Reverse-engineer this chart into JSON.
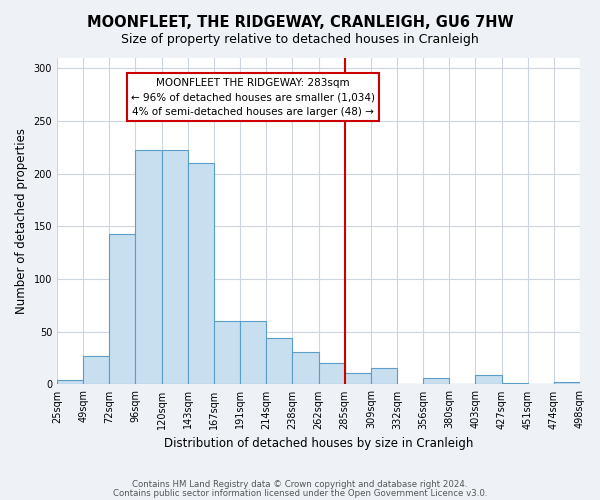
{
  "title": "MOONFLEET, THE RIDGEWAY, CRANLEIGH, GU6 7HW",
  "subtitle": "Size of property relative to detached houses in Cranleigh",
  "xlabel": "Distribution of detached houses by size in Cranleigh",
  "ylabel": "Number of detached properties",
  "footer_lines": [
    "Contains HM Land Registry data © Crown copyright and database right 2024.",
    "Contains public sector information licensed under the Open Government Licence v3.0."
  ],
  "tick_labels": [
    "25sqm",
    "49sqm",
    "72sqm",
    "96sqm",
    "120sqm",
    "143sqm",
    "167sqm",
    "191sqm",
    "214sqm",
    "238sqm",
    "262sqm",
    "285sqm",
    "309sqm",
    "332sqm",
    "356sqm",
    "380sqm",
    "403sqm",
    "427sqm",
    "451sqm",
    "474sqm",
    "498sqm"
  ],
  "bar_values": [
    4,
    27,
    143,
    222,
    222,
    210,
    60,
    60,
    44,
    31,
    20,
    11,
    16,
    0,
    6,
    0,
    9,
    1,
    0,
    2
  ],
  "bar_color": "#c8dff0",
  "bar_edge_color": "#5a9ec9",
  "vline_color": "#cc0000",
  "annotation_line1": "MOONFLEET THE RIDGEWAY: 283sqm",
  "annotation_line2": "← 96% of detached houses are smaller (1,034)",
  "annotation_line3": "4% of semi-detached houses are larger (48) →",
  "ylim": [
    0,
    310
  ],
  "background_color": "#eef2f7",
  "plot_bg_color": "#ffffff",
  "grid_color": "#cdd5e0"
}
